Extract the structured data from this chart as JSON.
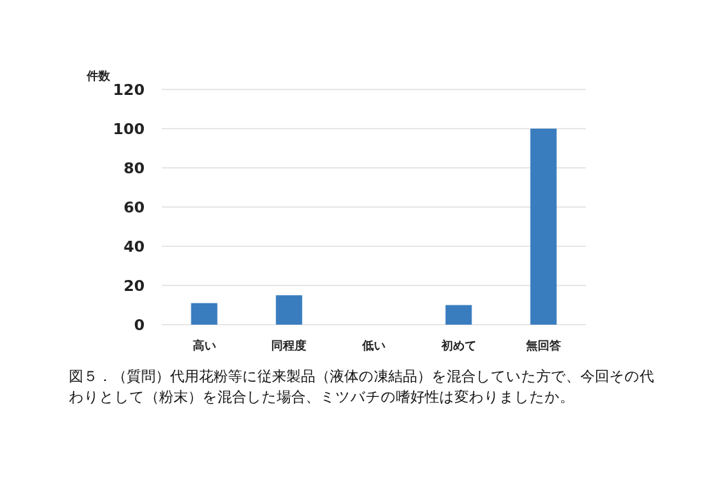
{
  "chart_data": {
    "type": "bar",
    "ylabel": "件数",
    "categories": [
      "高い",
      "同程度",
      "低い",
      "初めて",
      "無回答"
    ],
    "values": [
      11,
      15,
      0,
      10,
      100
    ],
    "color": "#3a7dbf",
    "ylim": [
      0,
      120
    ],
    "yticks": [
      0,
      20,
      40,
      60,
      80,
      100,
      120
    ],
    "grid": "y",
    "annotations": [
      "図５．（質問）代用花粉等に従来製品（液体の凍結品）を混合していた方で、今回その代わりとして（粉末）を混合した場合、ミツバチの嗜好性は変わりましたか。"
    ]
  }
}
